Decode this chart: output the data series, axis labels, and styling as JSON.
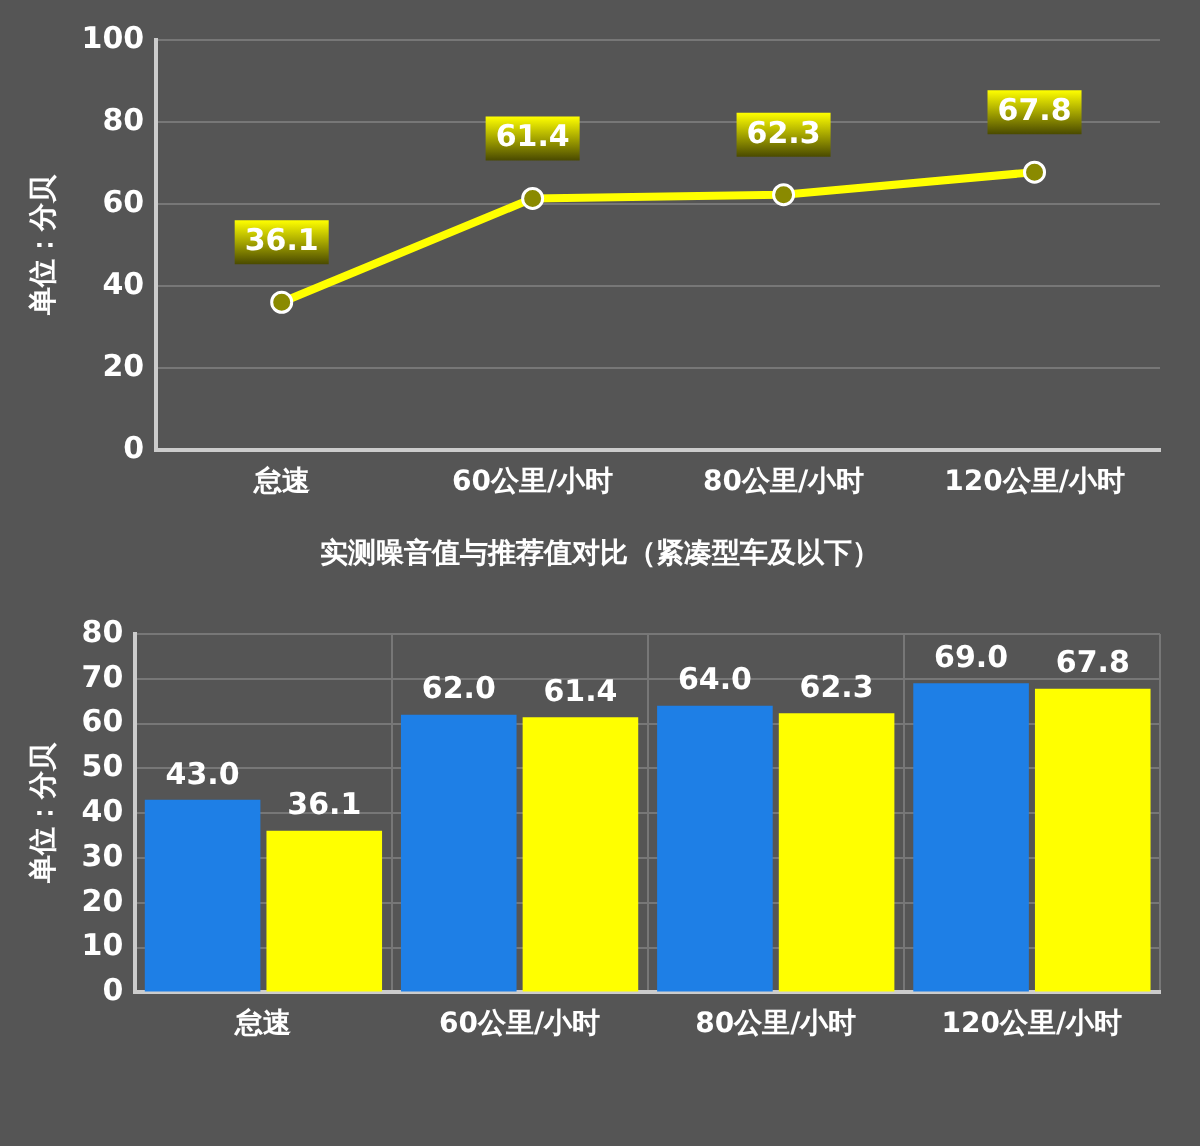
{
  "chart_data": [
    {
      "type": "line",
      "ylabel": "单位：分贝",
      "categories": [
        "怠速",
        "60公里/小时",
        "80公里/小时",
        "120公里/小时"
      ],
      "series": [
        {
          "color": "#ffff00",
          "values": [
            36.1,
            61.4,
            62.3,
            67.8
          ]
        }
      ],
      "ylim": [
        0,
        100
      ],
      "yticks": [
        0,
        20,
        40,
        60,
        80,
        100
      ],
      "grid": "y",
      "marker": "circle",
      "data_labels": true
    },
    {
      "type": "bar",
      "title": "实测噪音值与推荐值对比（紧凑型车及以下）",
      "ylabel": "单位：分贝",
      "categories": [
        "怠速",
        "60公里/小时",
        "80公里/小时",
        "120公里/小时"
      ],
      "series": [
        {
          "color": "#1e7fe6",
          "values": [
            43,
            62,
            64,
            69
          ],
          "value_labels": [
            "43.0",
            "62.0",
            "64.0",
            "69.0"
          ]
        },
        {
          "color": "#ffff00",
          "values": [
            36.1,
            61.4,
            62.3,
            67.8
          ],
          "value_labels": [
            "36.1",
            "61.4",
            "62.3",
            "67.8"
          ]
        }
      ],
      "ylim": [
        0,
        80
      ],
      "yticks": [
        0,
        10,
        20,
        30,
        40,
        50,
        60,
        70,
        80
      ],
      "grid": true
    }
  ]
}
